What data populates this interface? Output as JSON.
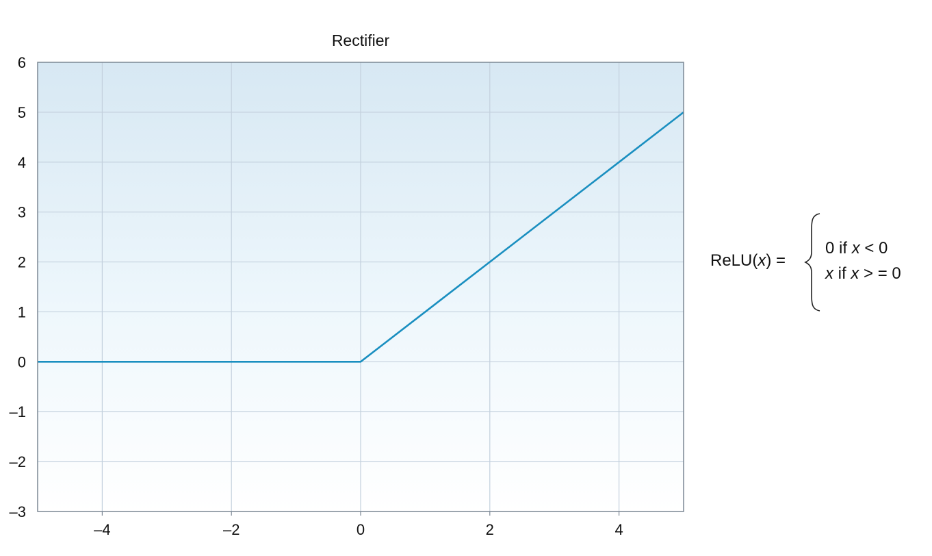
{
  "chart_data": {
    "type": "line",
    "title": "Rectifier",
    "xlabel": "",
    "ylabel": "",
    "xlim": [
      -5,
      5
    ],
    "ylim": [
      -3,
      6
    ],
    "x_ticks": [
      -4,
      -2,
      0,
      2,
      4
    ],
    "x_tick_labels": [
      "–4",
      "–2",
      "0",
      "2",
      "4"
    ],
    "y_ticks": [
      -3,
      -2,
      -1,
      0,
      1,
      2,
      3,
      4,
      5,
      6
    ],
    "y_tick_labels": [
      "–3",
      "–2",
      "–1",
      "0",
      "1",
      "2",
      "3",
      "4",
      "5",
      "6"
    ],
    "grid": true,
    "series": [
      {
        "x": [
          -5,
          0,
          5
        ],
        "y": [
          0,
          0,
          5
        ]
      }
    ],
    "colors": {
      "line": "#1a8fc0",
      "grid": "#c3d0dd",
      "frame": "#7b8794",
      "bg_top": "#d7e8f3",
      "bg_bottom": "#ffffff"
    }
  },
  "formula": {
    "lhs": {
      "text1": "ReLU(",
      "var": "x",
      "text2": ") ="
    },
    "case1": {
      "text1": "0 if ",
      "var": "x",
      "text2": " < 0"
    },
    "case2": {
      "var1": "x",
      "text1": " if ",
      "var2": "x",
      "text2": " > = 0"
    }
  }
}
